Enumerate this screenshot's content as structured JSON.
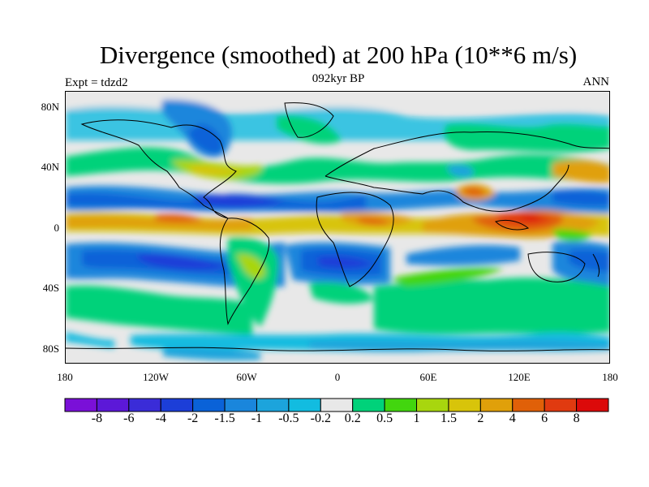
{
  "title": "Divergence (smoothed) at 200 hPa (10**6 m/s)",
  "subtitle_left": "Expt = tdzd2",
  "subtitle_center": "092kyr BP",
  "subtitle_right": "ANN",
  "map": {
    "lat_ticks": [
      "80N",
      "40N",
      "0",
      "40S",
      "80S"
    ],
    "lon_ticks": [
      "180",
      "120W",
      "60W",
      "0",
      "60E",
      "120E",
      "180"
    ]
  },
  "colorbar": {
    "labels": [
      "-8",
      "-6",
      "-4",
      "-2",
      "-1.5",
      "-1",
      "-0.5",
      "-0.2",
      "0.2",
      "0.5",
      "1",
      "1.5",
      "2",
      "4",
      "6",
      "8"
    ],
    "colors": [
      "#7a10d8",
      "#5c18d8",
      "#3a2cd8",
      "#1c3ed8",
      "#0a62d8",
      "#1a86dc",
      "#1ca4dc",
      "#12bce0",
      "#e8e8e8",
      "#00d27a",
      "#42d60e",
      "#a8d60e",
      "#d8c40a",
      "#e0a00a",
      "#e06008",
      "#e03a10",
      "#dc0a0a"
    ]
  }
}
